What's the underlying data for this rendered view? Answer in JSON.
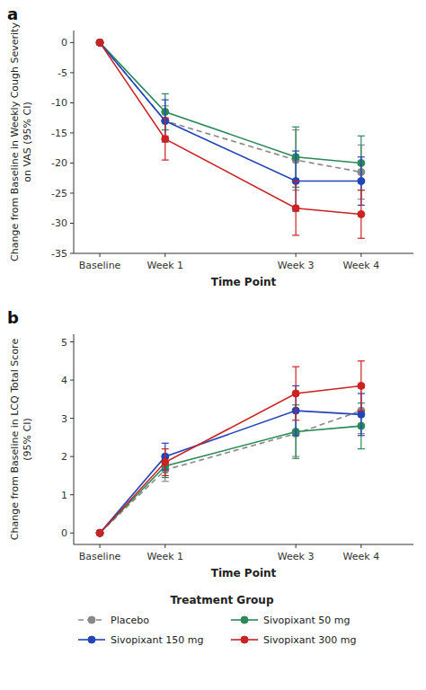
{
  "chart_data": [
    {
      "type": "line",
      "title": "a",
      "x_label": "Time Point",
      "y_label": "Change from Baseline in Weekly Cough Severity\non VAS (95% CI)",
      "x": [
        0,
        1,
        3,
        4
      ],
      "xlim": [
        -0.4,
        4.8
      ],
      "xticks": [
        {
          "value": 0,
          "label": "Baseline"
        },
        {
          "value": 1,
          "label": "Week 1"
        },
        {
          "value": 3,
          "label": "Week 3"
        },
        {
          "value": 4,
          "label": "Week 4"
        }
      ],
      "ylim": [
        -35,
        2
      ],
      "yticks": [
        0,
        -5,
        -10,
        -15,
        -20,
        -25,
        -30,
        -35
      ],
      "grid": false,
      "series": [
        {
          "color": "#888888",
          "line_style": "dashed",
          "marker": "circle",
          "values": [
            0,
            -13.0,
            -19.5,
            -21.5
          ],
          "error_low": [
            0,
            2.5,
            5.0,
            4.5
          ],
          "error_high": [
            0,
            2.5,
            5.0,
            4.5
          ]
        },
        {
          "color": "#2a8a57",
          "line_style": "solid",
          "marker": "circle",
          "values": [
            0,
            -11.5,
            -19.0,
            -20.0
          ],
          "error_low": [
            0,
            3.0,
            5.0,
            4.5
          ],
          "error_high": [
            0,
            3.0,
            5.0,
            4.5
          ]
        },
        {
          "color": "#2244bb",
          "line_style": "solid",
          "marker": "circle",
          "values": [
            0,
            -13.0,
            -23.0,
            -23.0
          ],
          "error_low": [
            0,
            3.5,
            5.0,
            4.0
          ],
          "error_high": [
            0,
            3.5,
            5.0,
            4.0
          ]
        },
        {
          "color": "#cc2222",
          "line_style": "solid",
          "marker": "circle",
          "values": [
            0,
            -16.0,
            -27.5,
            -28.5
          ],
          "error_low": [
            0,
            3.5,
            4.5,
            4.0
          ],
          "error_high": [
            0,
            3.5,
            4.5,
            4.0
          ]
        }
      ]
    },
    {
      "type": "line",
      "title": "b",
      "x_label": "Time Point",
      "y_label": "Change from Baseline in LCQ Total Score\n(95% CI)",
      "x": [
        0,
        1,
        3,
        4
      ],
      "xlim": [
        -0.4,
        4.8
      ],
      "xticks": [
        {
          "value": 0,
          "label": "Baseline"
        },
        {
          "value": 1,
          "label": "Week 1"
        },
        {
          "value": 3,
          "label": "Week 3"
        },
        {
          "value": 4,
          "label": "Week 4"
        }
      ],
      "ylim": [
        -0.3,
        5.2
      ],
      "yticks": [
        0,
        1,
        2,
        3,
        4,
        5
      ],
      "grid": false,
      "legend": "bottom",
      "legend_title": "Treatment Group",
      "series": [
        {
          "name": "Placebo",
          "color": "#888888",
          "line_style": "dashed",
          "marker": "circle",
          "values": [
            0,
            1.65,
            2.6,
            3.2
          ],
          "error_low": [
            0,
            0.3,
            0.6,
            0.6
          ],
          "error_high": [
            0,
            0.3,
            0.6,
            0.6
          ]
        },
        {
          "name": "Sivopixant 50 mg",
          "color": "#2a8a57",
          "line_style": "solid",
          "marker": "circle",
          "values": [
            0,
            1.75,
            2.65,
            2.8
          ],
          "error_low": [
            0,
            0.3,
            0.7,
            0.6
          ],
          "error_high": [
            0,
            0.3,
            0.7,
            0.6
          ]
        },
        {
          "name": "Sivopixant 150 mg",
          "color": "#2244bb",
          "line_style": "solid",
          "marker": "circle",
          "values": [
            0,
            2.0,
            3.2,
            3.1
          ],
          "error_low": [
            0,
            0.35,
            0.65,
            0.55
          ],
          "error_high": [
            0,
            0.35,
            0.65,
            0.55
          ]
        },
        {
          "name": "Sivopixant 300 mg",
          "color": "#cc2222",
          "line_style": "solid",
          "marker": "circle",
          "values": [
            0,
            1.85,
            3.65,
            3.85
          ],
          "error_low": [
            0,
            0.35,
            0.7,
            0.65
          ],
          "error_high": [
            0,
            0.35,
            0.7,
            0.65
          ]
        }
      ]
    }
  ]
}
